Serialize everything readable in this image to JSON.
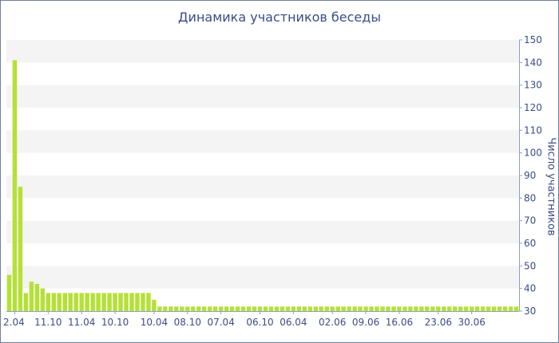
{
  "chart_data": {
    "type": "bar",
    "title": "Динамика участников беседы",
    "xlabel": "",
    "ylabel": "Число участников",
    "ylim": [
      30,
      150
    ],
    "yticks": [
      30,
      40,
      50,
      60,
      70,
      80,
      90,
      100,
      110,
      120,
      130,
      140,
      150
    ],
    "grid": "horizontal bands",
    "y_axis_side": "right",
    "bar_color": "#b5e037",
    "xtick_labels": [
      "2.04",
      "11.10",
      "11.04",
      "10.10",
      "10.04",
      "08.10",
      "07.04",
      "06.10",
      "06.04",
      "02.06",
      "09.06",
      "16.06",
      "23.06",
      "30.06"
    ],
    "xtick_bar_index": [
      1,
      7,
      13,
      19,
      26,
      32,
      38,
      45,
      51,
      58,
      64,
      70,
      77,
      83
    ],
    "values": [
      46,
      141,
      85,
      38,
      43,
      42,
      40,
      38,
      38,
      38,
      38,
      38,
      38,
      38,
      38,
      38,
      38,
      38,
      38,
      38,
      38,
      38,
      38,
      38,
      38,
      38,
      35,
      32,
      32,
      32,
      32,
      32,
      32,
      32,
      32,
      32,
      32,
      32,
      32,
      32,
      32,
      32,
      32,
      32,
      32,
      32,
      32,
      32,
      32,
      32,
      32,
      32,
      32,
      32,
      32,
      32,
      32,
      32,
      32,
      32,
      32,
      32,
      32,
      32,
      32,
      32,
      32,
      32,
      32,
      32,
      32,
      32,
      32,
      32,
      32,
      32,
      32,
      32,
      32,
      32,
      32,
      32,
      32,
      32,
      32,
      32,
      32,
      32,
      32,
      32,
      32,
      32
    ]
  }
}
